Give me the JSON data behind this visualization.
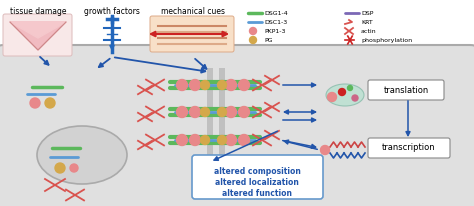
{
  "dsg_color": "#5cb85c",
  "dsc_color": "#5b9bd5",
  "pkp_color": "#e8888a",
  "pg_color": "#d4a84b",
  "dsp_color": "#7b68b5",
  "krt_color": "#d9534f",
  "actin_color": "#d9534f",
  "phos_color": "#cc2222",
  "arrow_color": "#2255aa",
  "cell_fill": "#dedede",
  "cell_ec": "#aaaaaa",
  "nuc_fill": "#d0d0d0",
  "nuc_ec": "#bbbbbb",
  "white": "#ffffff",
  "text_altered": [
    "altered composition",
    "altered localization",
    "altered function"
  ],
  "text_translation": "translation",
  "text_transcription": "transcription",
  "top_labels": [
    "tissue damage",
    "growth factors",
    "mechanical cues"
  ],
  "legend_left": [
    "DSG1-4",
    "DSC1-3",
    "PKP1-3",
    "PG"
  ],
  "legend_right": [
    "DSP",
    "KRT",
    "actin",
    "phosphorylation"
  ]
}
